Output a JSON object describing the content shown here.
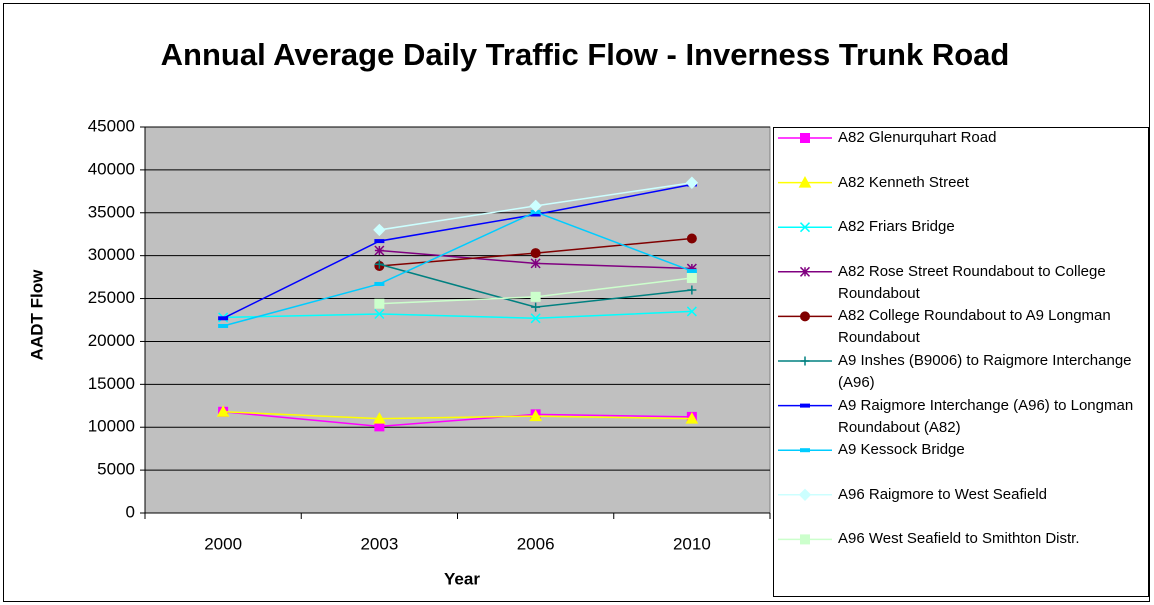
{
  "chart_data": {
    "type": "line",
    "title": "Annual Average Daily Traffic Flow - Inverness Trunk Road",
    "x_label": "Year",
    "y_label": "AADT Flow",
    "categories": [
      "2000",
      "2003",
      "2006",
      "2010"
    ],
    "ylim": [
      0,
      45000
    ],
    "yticks": [
      0,
      5000,
      10000,
      15000,
      20000,
      25000,
      30000,
      35000,
      40000,
      45000
    ],
    "grid": true,
    "legend": "right",
    "series": [
      {
        "name": "A82 Glenurquhart Road",
        "color": "#ff00ff",
        "marker": "square",
        "values": [
          11800,
          10100,
          11500,
          11200
        ]
      },
      {
        "name": "A82 Kenneth Street",
        "color": "#ffff00",
        "marker": "triangle",
        "values": [
          11800,
          11000,
          11300,
          11000
        ]
      },
      {
        "name": "A82 Friars Bridge",
        "color": "#00ffff",
        "marker": "x",
        "values": [
          22800,
          23200,
          22700,
          23500
        ]
      },
      {
        "name": "A82 Rose Street Roundabout to College Roundabout",
        "color": "#800080",
        "marker": "star",
        "values": [
          null,
          30600,
          29100,
          28500
        ]
      },
      {
        "name": "A82 College Roundabout to A9 Longman Roundabout",
        "color": "#800000",
        "marker": "circle",
        "values": [
          null,
          28800,
          30300,
          32000
        ]
      },
      {
        "name": "A9 Inshes (B9006) to Raigmore Interchange (A96)",
        "color": "#008080",
        "marker": "plus",
        "values": [
          null,
          29000,
          24000,
          26000
        ]
      },
      {
        "name": "A9 Raigmore Interchange (A96) to Longman Roundabout (A82)",
        "color": "#0000ff",
        "marker": "dash",
        "values": [
          22700,
          31700,
          34800,
          38300
        ]
      },
      {
        "name": "A9 Kessock Bridge",
        "color": "#00ccff",
        "marker": "dash",
        "values": [
          21800,
          26700,
          35100,
          28200
        ]
      },
      {
        "name": "A96 Raigmore to West Seafield",
        "color": "#ccffff",
        "marker": "diamond",
        "values": [
          null,
          33000,
          35800,
          38500
        ]
      },
      {
        "name": "A96 West Seafield to Smithton Distr.",
        "color": "#ccffcc",
        "marker": "square",
        "values": [
          null,
          24400,
          25200,
          27400
        ]
      }
    ]
  }
}
